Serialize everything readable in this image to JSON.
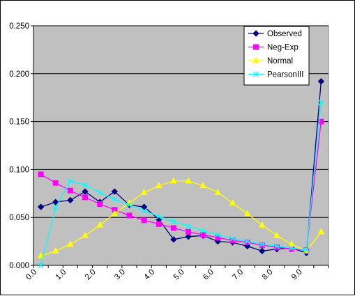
{
  "chart_data": {
    "type": "line",
    "grid": "horizontal",
    "plot_background": "#C0C0C0",
    "legend_placement": "top-right",
    "x": [
      0.25,
      0.75,
      1.25,
      1.75,
      2.25,
      2.75,
      3.25,
      3.75,
      4.25,
      4.75,
      5.25,
      5.75,
      6.25,
      6.75,
      7.25,
      7.75,
      8.25,
      8.75,
      9.25,
      9.75
    ],
    "xlim": [
      0,
      10
    ],
    "ylim": [
      0,
      0.25
    ],
    "x_ticks": [
      "0.0",
      "1.0",
      "2.0",
      "3.0",
      "4.0",
      "5.0",
      "6.0",
      "7.0",
      "8.0",
      "9.0"
    ],
    "y_ticks": [
      "0.000",
      "0.050",
      "0.100",
      "0.150",
      "0.200",
      "0.250"
    ],
    "series": [
      {
        "name": "Observed",
        "color": "#000080",
        "marker": "diamond",
        "values": [
          0.061,
          0.066,
          0.068,
          0.077,
          0.066,
          0.077,
          0.063,
          0.061,
          0.048,
          0.027,
          0.03,
          0.031,
          0.025,
          0.024,
          0.02,
          0.015,
          0.017,
          0.018,
          0.013,
          0.192
        ]
      },
      {
        "name": "Neg-Exp",
        "color": "#FF00FF",
        "marker": "square",
        "values": [
          0.095,
          0.086,
          0.078,
          0.071,
          0.064,
          0.058,
          0.052,
          0.047,
          0.043,
          0.039,
          0.035,
          0.032,
          0.029,
          0.026,
          0.024,
          0.021,
          0.019,
          0.017,
          0.016,
          0.15
        ]
      },
      {
        "name": "Normal",
        "color": "#FFFF00",
        "marker": "triangle",
        "values": [
          0.01,
          0.015,
          0.022,
          0.031,
          0.042,
          0.054,
          0.065,
          0.076,
          0.083,
          0.088,
          0.088,
          0.083,
          0.076,
          0.065,
          0.054,
          0.042,
          0.031,
          0.022,
          0.015,
          0.035
        ]
      },
      {
        "name": "PearsonIII",
        "color": "#00FFFF",
        "marker": "x",
        "values": [
          0.0,
          0.06,
          0.088,
          0.084,
          0.076,
          0.069,
          0.063,
          0.057,
          0.051,
          0.046,
          0.041,
          0.036,
          0.032,
          0.028,
          0.025,
          0.022,
          0.02,
          0.018,
          0.016,
          0.17
        ]
      }
    ]
  }
}
